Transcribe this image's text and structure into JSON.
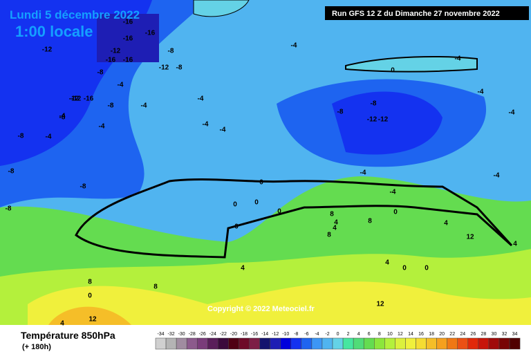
{
  "header": {
    "date": "Lundi 5 décembre 2022",
    "time": "1:00 locale",
    "run": "Run GFS 12 Z du Dimanche 27 novembre 2022"
  },
  "map": {
    "copyright": "Copyright © 2022 Meteociel.fr",
    "contour_labels": [
      -16,
      -16,
      -16,
      -16,
      -12,
      -12,
      -8,
      -8,
      -12,
      -8,
      -16,
      -12,
      -8,
      -4,
      -12,
      -16,
      -8,
      -4,
      -4,
      -8,
      -4,
      -8,
      -4,
      -4,
      -4,
      -4,
      0,
      -4,
      -8,
      -8,
      -12,
      -12,
      -4,
      -4,
      -4,
      -4,
      -4,
      0,
      0,
      0,
      0,
      0,
      4,
      4,
      8,
      4,
      4,
      0,
      0,
      0,
      4,
      8,
      8,
      12,
      12,
      8,
      8,
      12,
      4,
      -8,
      -8,
      -4,
      4,
      0
    ],
    "hatched": "0"
  },
  "legend": {
    "title": "Température 850hPa",
    "subtitle": "(+ 180h)",
    "scale": [
      -34,
      -32,
      -30,
      -28,
      -26,
      -24,
      -22,
      -20,
      -18,
      -16,
      -14,
      -12,
      -10,
      -8,
      -6,
      -4,
      -2,
      0,
      2,
      4,
      6,
      8,
      10,
      12,
      14,
      16,
      18,
      20,
      22,
      24,
      26,
      28,
      30,
      32,
      34
    ],
    "colors": [
      "#d0d0d0",
      "#b4b4b4",
      "#a08ca0",
      "#8c5a8c",
      "#7a3c7a",
      "#5a1e5a",
      "#3c0a3c",
      "#500014",
      "#6e0a28",
      "#7d1e46",
      "#14146e",
      "#1e1eb4",
      "#0000dc",
      "#1432f0",
      "#1e64f0",
      "#3c96f5",
      "#50b4f0",
      "#64d2e6",
      "#46e6a0",
      "#50dc78",
      "#64dc50",
      "#8ce63c",
      "#b4f03c",
      "#dcf03c",
      "#f0f03c",
      "#f5dc32",
      "#f5be28",
      "#f5a01e",
      "#f07814",
      "#eb5014",
      "#e1280a",
      "#c8140a",
      "#a00a0a",
      "#780505",
      "#500000"
    ]
  }
}
